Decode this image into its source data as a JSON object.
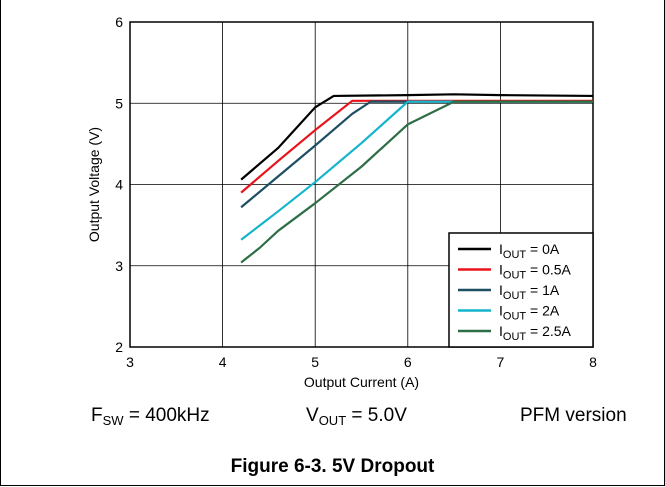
{
  "chart_data": {
    "type": "line",
    "xlabel": "Output Current (A)",
    "ylabel": "Output Voltage (V)",
    "xlim": [
      3,
      8
    ],
    "ylim": [
      2,
      6
    ],
    "xticks": [
      3,
      4,
      5,
      6,
      7,
      8
    ],
    "yticks": [
      2,
      3,
      4,
      5,
      6
    ],
    "grid": true,
    "legend_position": "bottom-right",
    "series": [
      {
        "name": "I_OUT = 0A",
        "label_main": "I",
        "label_sub": "OUT",
        "label_rest": " = 0A",
        "color": "#000000",
        "x": [
          4.2,
          4.6,
          5.0,
          5.2,
          6.0,
          6.5,
          7.0,
          8.0
        ],
        "y": [
          4.06,
          4.45,
          4.95,
          5.09,
          5.1,
          5.11,
          5.1,
          5.09
        ]
      },
      {
        "name": "I_OUT = 0.5A",
        "label_main": "I",
        "label_sub": "OUT",
        "label_rest": " = 0.5A",
        "color": "#e8131b",
        "x": [
          4.2,
          4.6,
          5.0,
          5.4,
          6.0,
          7.0,
          8.0
        ],
        "y": [
          3.9,
          4.29,
          4.67,
          5.03,
          5.03,
          5.03,
          5.03
        ]
      },
      {
        "name": "I_OUT = 1A",
        "label_main": "I",
        "label_sub": "OUT",
        "label_rest": " = 1A",
        "color": "#1d4e62",
        "x": [
          4.2,
          4.6,
          5.0,
          5.4,
          5.6,
          6.0,
          7.0,
          8.0
        ],
        "y": [
          3.72,
          4.1,
          4.48,
          4.87,
          5.02,
          5.02,
          5.02,
          5.02
        ]
      },
      {
        "name": "I_OUT = 2A",
        "label_main": "I",
        "label_sub": "OUT",
        "label_rest": " = 2A",
        "color": "#14b4cc",
        "x": [
          4.2,
          4.6,
          5.0,
          5.5,
          6.0,
          7.0,
          8.0
        ],
        "y": [
          3.32,
          3.67,
          4.03,
          4.51,
          5.02,
          5.02,
          5.02
        ]
      },
      {
        "name": "I_OUT = 2.5A",
        "label_main": "I",
        "label_sub": "OUT",
        "label_rest": " = 2.5A",
        "color": "#2e6e46",
        "x": [
          4.2,
          4.4,
          4.6,
          5.0,
          5.5,
          6.0,
          6.5,
          7.0,
          8.0
        ],
        "y": [
          3.04,
          3.22,
          3.43,
          3.77,
          4.22,
          4.74,
          5.02,
          5.02,
          5.02
        ]
      }
    ]
  },
  "notes": {
    "fsw_main": "F",
    "fsw_sub": "SW",
    "fsw_rest": " = 400kHz",
    "vout_main": "V",
    "vout_sub": "OUT",
    "vout_rest": " = 5.0V",
    "version": "PFM version"
  },
  "caption": "Figure 6-3. 5V Dropout"
}
